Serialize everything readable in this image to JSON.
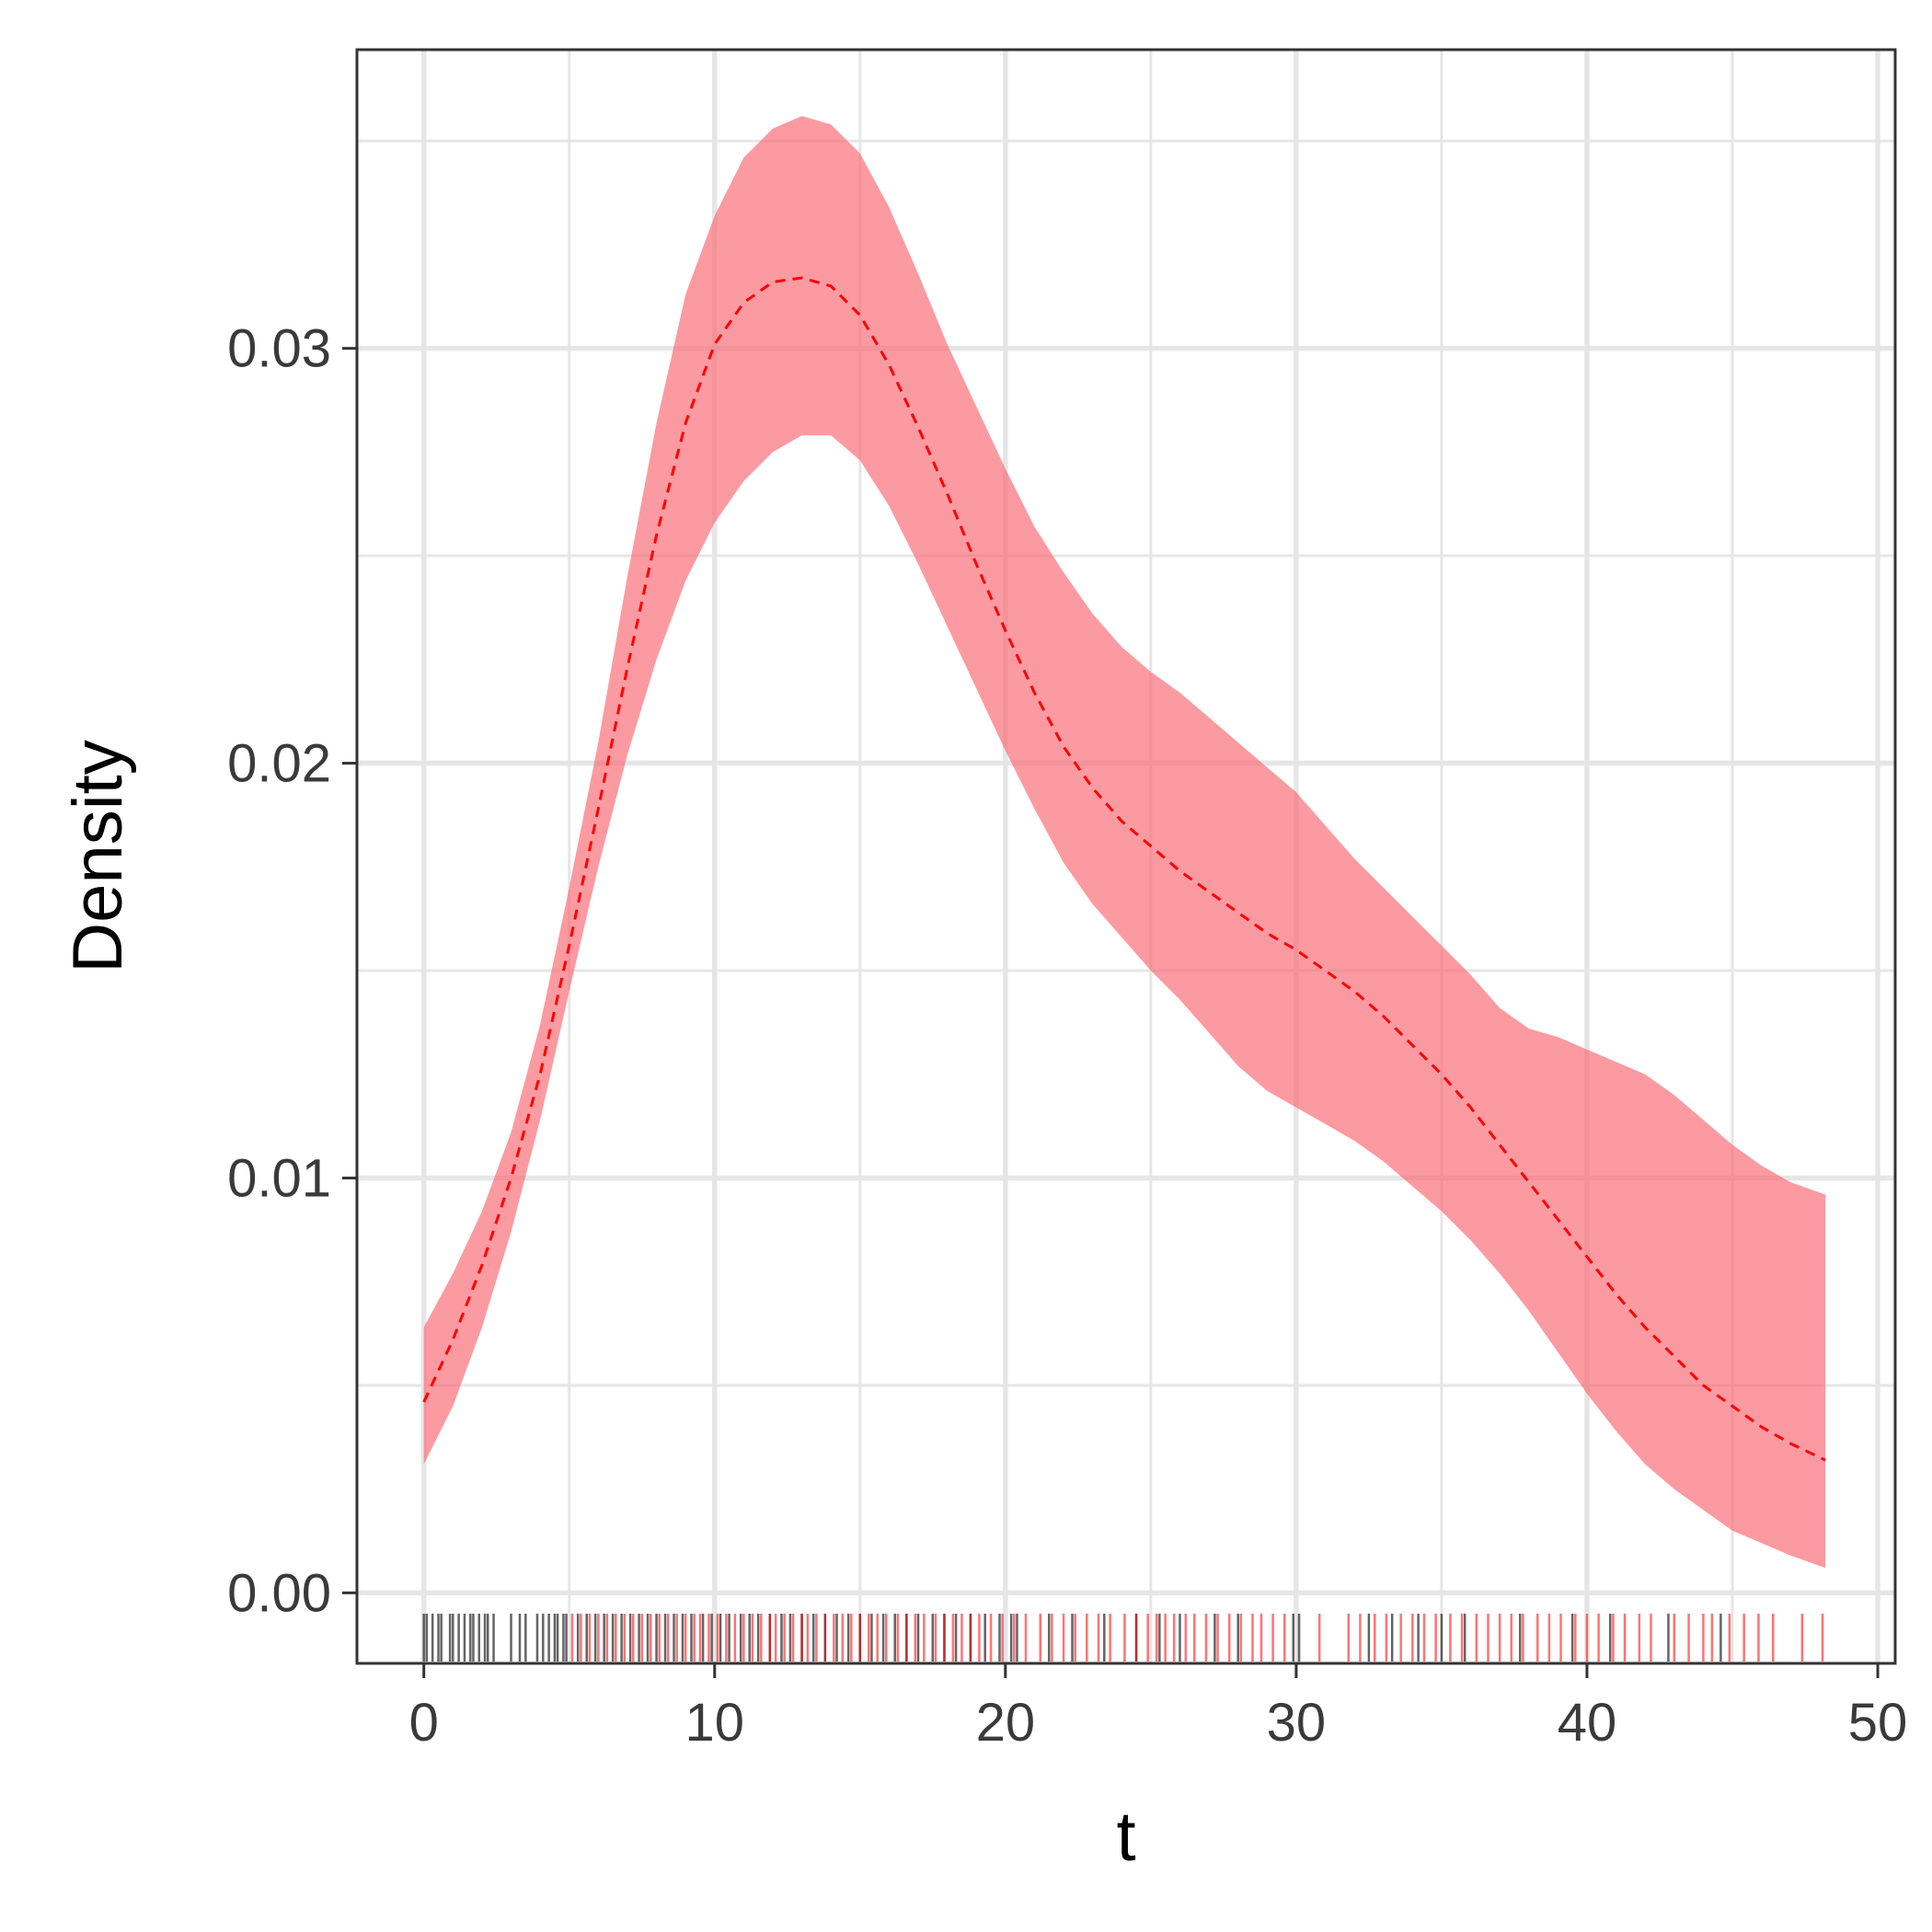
{
  "chart_data": {
    "type": "area",
    "title": "",
    "xlabel": "t",
    "ylabel": "Density",
    "xlim": [
      -2.3,
      50.6
    ],
    "ylim": [
      -0.0017,
      0.0372
    ],
    "x_ticks": [
      0,
      10,
      20,
      30,
      40,
      50
    ],
    "x_tick_labels": [
      "0",
      "10",
      "20",
      "30",
      "40",
      "50"
    ],
    "y_ticks": [
      0.0,
      0.01,
      0.02,
      0.03
    ],
    "y_tick_labels": [
      "0.00",
      "0.01",
      "0.02",
      "0.03"
    ],
    "x_minor_ticks": [
      5,
      15,
      25,
      35,
      45
    ],
    "y_minor_ticks": [
      0.005,
      0.015,
      0.025,
      0.035
    ],
    "grid": true,
    "legend": "none",
    "colors": {
      "band": "#fa6a74",
      "line": "#ff0000",
      "rug_black": "#222222",
      "rug_red": "#ff0000",
      "frame": "#333333",
      "grid": "#e6e6e6"
    },
    "series": [
      {
        "kind": "band",
        "x": [
          0,
          1,
          2,
          3,
          4,
          5,
          6,
          7,
          8,
          9,
          10,
          11,
          12,
          13,
          14,
          15,
          16,
          17,
          18,
          19,
          20,
          21,
          22,
          23,
          24,
          25,
          26,
          27,
          28,
          29,
          30,
          31,
          32,
          33,
          34,
          35,
          36,
          37,
          38,
          39,
          40,
          41,
          42,
          43,
          44,
          45,
          46,
          47,
          48.2
        ],
        "lower": [
          0.0031,
          0.0045,
          0.0064,
          0.0087,
          0.0114,
          0.0145,
          0.0175,
          0.0202,
          0.0225,
          0.0244,
          0.0258,
          0.0268,
          0.0275,
          0.0279,
          0.0279,
          0.0273,
          0.0262,
          0.0248,
          0.0233,
          0.0218,
          0.0203,
          0.0189,
          0.0176,
          0.0166,
          0.0158,
          0.015,
          0.0143,
          0.0135,
          0.0127,
          0.0121,
          0.0117,
          0.0113,
          0.0109,
          0.0104,
          0.0098,
          0.0092,
          0.0085,
          0.0077,
          0.0068,
          0.0058,
          0.0048,
          0.0039,
          0.0031,
          0.0025,
          0.002,
          0.0015,
          0.0012,
          0.0009,
          0.0006
        ],
        "upper": [
          0.0064,
          0.0077,
          0.0092,
          0.0111,
          0.0137,
          0.017,
          0.0205,
          0.0245,
          0.0282,
          0.0313,
          0.0332,
          0.0346,
          0.0353,
          0.0356,
          0.0354,
          0.0347,
          0.0334,
          0.0318,
          0.0301,
          0.0286,
          0.0271,
          0.0257,
          0.0246,
          0.0236,
          0.0228,
          0.0222,
          0.0217,
          0.0211,
          0.0205,
          0.0199,
          0.0193,
          0.0185,
          0.0177,
          0.017,
          0.0163,
          0.0156,
          0.0149,
          0.0141,
          0.0136,
          0.0134,
          0.0131,
          0.0128,
          0.0125,
          0.012,
          0.0114,
          0.0108,
          0.0103,
          0.0099,
          0.0096
        ]
      },
      {
        "kind": "line",
        "style": "dashed",
        "x": [
          0,
          1,
          2,
          3,
          4,
          5,
          6,
          7,
          8,
          9,
          10,
          11,
          12,
          13,
          14,
          15,
          16,
          17,
          18,
          19,
          20,
          21,
          22,
          23,
          24,
          25,
          26,
          27,
          28,
          29,
          30,
          31,
          32,
          33,
          34,
          35,
          36,
          37,
          38,
          39,
          40,
          41,
          42,
          43,
          44,
          45,
          46,
          47,
          48.2
        ],
        "y": [
          0.0046,
          0.0061,
          0.0079,
          0.01,
          0.0125,
          0.0156,
          0.0189,
          0.0223,
          0.0255,
          0.0282,
          0.0301,
          0.0311,
          0.0316,
          0.0317,
          0.0315,
          0.0308,
          0.0296,
          0.0281,
          0.0265,
          0.0248,
          0.0232,
          0.0217,
          0.0204,
          0.0194,
          0.0186,
          0.018,
          0.0174,
          0.0169,
          0.0164,
          0.0159,
          0.0155,
          0.015,
          0.0145,
          0.0139,
          0.0132,
          0.0125,
          0.0117,
          0.0108,
          0.0099,
          0.009,
          0.0081,
          0.0072,
          0.0064,
          0.0057,
          0.005,
          0.0045,
          0.004,
          0.0036,
          0.0032
        ]
      }
    ],
    "rug": {
      "black": [
        0.0,
        0.1,
        0.3,
        0.5,
        0.6,
        0.9,
        1.0,
        1.2,
        1.4,
        1.6,
        1.7,
        1.9,
        2.1,
        2.2,
        2.4,
        3.0,
        3.3,
        3.5,
        3.9,
        4.1,
        4.3,
        4.5,
        4.6,
        4.8,
        4.9,
        5.3,
        5.6,
        5.9,
        6.2,
        6.5,
        6.8,
        7.1,
        7.4,
        7.7,
        8.0,
        8.3,
        8.6,
        8.9,
        9.2,
        9.6,
        9.9,
        10.2,
        10.5,
        10.9,
        11.2,
        11.5,
        11.9,
        12.3,
        12.6,
        13.0,
        13.4,
        13.8,
        14.2,
        14.6,
        15.0,
        15.4,
        15.8,
        16.2,
        16.6,
        17.0,
        17.5,
        17.9,
        18.3,
        18.8,
        19.3,
        19.8,
        20.2,
        20.4,
        21.5,
        22.3,
        23.4,
        24.5,
        25.3,
        26.0,
        27.2,
        28.0,
        29.9,
        30.1,
        32.5,
        33.3,
        34.2,
        35.0,
        35.8,
        37.7,
        39.5,
        40.8,
        42.8,
        44.6
      ],
      "red": [
        5.1,
        5.4,
        5.7,
        6.0,
        6.3,
        6.6,
        6.9,
        7.2,
        7.5,
        7.8,
        8.1,
        8.4,
        8.7,
        9.0,
        9.3,
        9.5,
        9.8,
        10.1,
        10.4,
        10.7,
        11.0,
        11.3,
        11.6,
        11.9,
        12.1,
        12.4,
        12.7,
        13.0,
        13.2,
        13.5,
        13.8,
        14.1,
        14.4,
        14.7,
        15.0,
        15.3,
        15.6,
        15.9,
        16.3,
        16.6,
        16.9,
        17.2,
        17.6,
        17.9,
        18.2,
        18.5,
        18.8,
        19.1,
        19.5,
        19.9,
        20.3,
        20.7,
        21.2,
        21.6,
        22.0,
        22.4,
        22.8,
        23.2,
        23.6,
        24.1,
        24.5,
        24.9,
        25.2,
        25.5,
        25.8,
        26.2,
        26.5,
        26.9,
        27.3,
        27.7,
        28.1,
        28.5,
        28.8,
        29.2,
        29.6,
        30.8,
        31.8,
        32.2,
        32.7,
        33.1,
        33.6,
        34.0,
        34.4,
        34.8,
        35.3,
        35.7,
        36.2,
        36.6,
        37.0,
        37.4,
        37.8,
        38.3,
        38.7,
        39.1,
        39.6,
        40.0,
        40.4,
        40.9,
        41.3,
        41.8,
        42.2,
        43.0,
        43.5,
        44.0,
        44.3,
        44.9,
        45.4,
        45.9,
        46.4,
        47.4,
        48.1
      ]
    }
  }
}
